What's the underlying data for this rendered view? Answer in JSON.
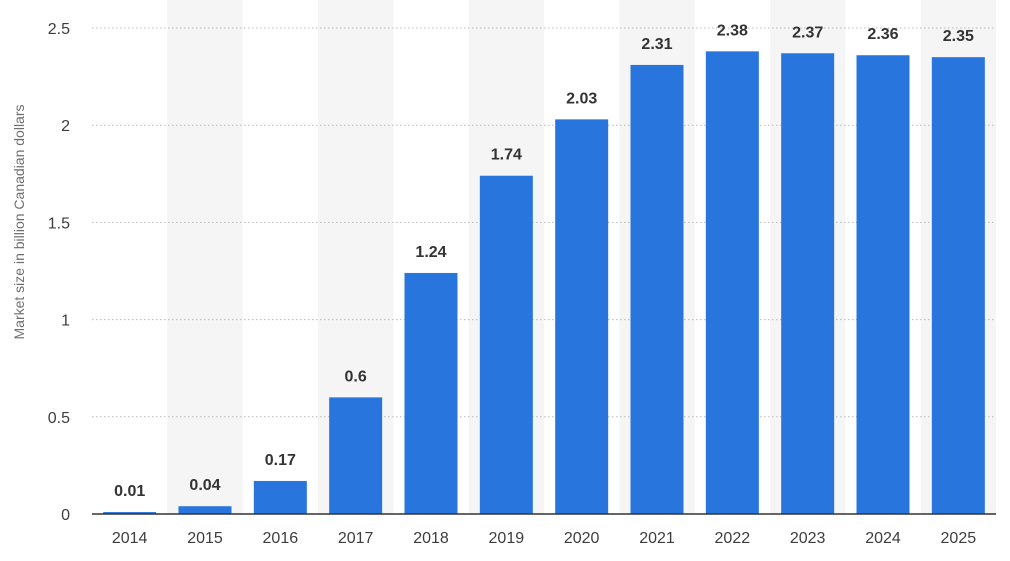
{
  "chart_data": {
    "type": "bar",
    "title": "",
    "xlabel": "",
    "ylabel": "Market size in billion Canadian dollars",
    "categories": [
      "2014",
      "2015",
      "2016",
      "2017",
      "2018",
      "2019",
      "2020",
      "2021",
      "2022",
      "2023",
      "2024",
      "2025"
    ],
    "values": [
      0.01,
      0.04,
      0.17,
      0.6,
      1.24,
      1.74,
      2.03,
      2.31,
      2.38,
      2.37,
      2.36,
      2.35
    ],
    "value_labels": [
      "0.01",
      "0.04",
      "0.17",
      "0.6",
      "1.24",
      "1.74",
      "2.03",
      "2.31",
      "2.38",
      "2.37",
      "2.36",
      "2.35"
    ],
    "ylim": [
      0,
      2.5
    ],
    "yticks": [
      0,
      0.5,
      1,
      1.5,
      2,
      2.5
    ],
    "ytick_labels": [
      "0",
      "0.5",
      "1",
      "1.5",
      "2",
      "2.5"
    ],
    "grid": true,
    "bar_color": "#2876dd",
    "band_color": "#f5f5f5",
    "gridline_color": "#b9b9b9",
    "axis_color": "#333333"
  }
}
